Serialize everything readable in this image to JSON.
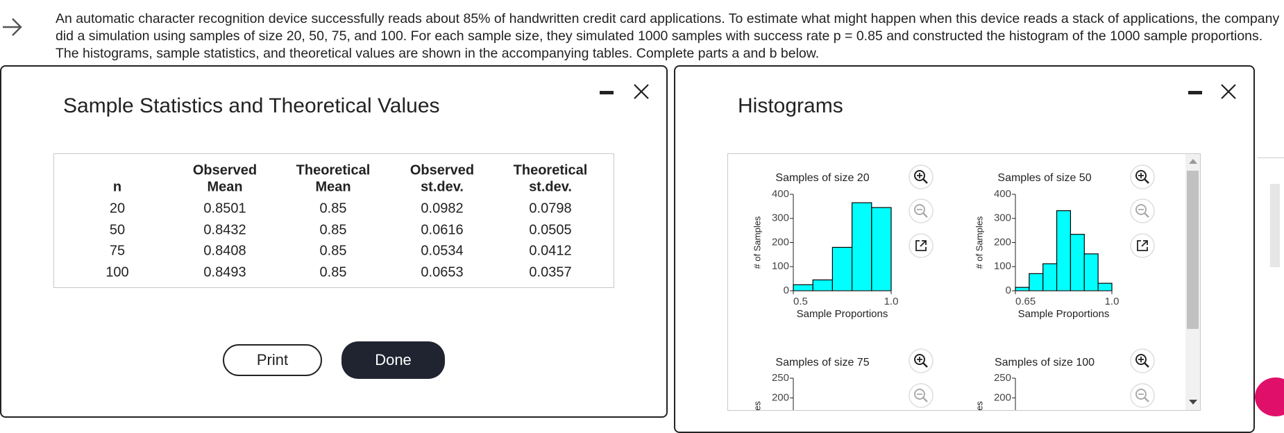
{
  "question": {
    "lines": [
      "An automatic character recognition device successfully reads about 85% of handwritten credit card applications. To estimate what might happen when this device reads a stack of applications, the company",
      "did a simulation using samples of size 20, 50, 75, and 100. For each sample size, they simulated 1000 samples with success rate p = 0.85 and constructed the histogram of the 1000 sample proportions.",
      "The histograms, sample statistics, and theoretical values are shown in the accompanying tables. Complete parts a and b below."
    ]
  },
  "stats_dialog": {
    "title": "Sample Statistics and Theoretical Values",
    "table": {
      "header": [
        [
          "n"
        ],
        [
          "Observed",
          "Mean"
        ],
        [
          "Theoretical",
          "Mean"
        ],
        [
          "Observed",
          "st.dev."
        ],
        [
          "Theoretical",
          "st.dev."
        ]
      ],
      "rows": [
        [
          "20",
          "0.8501",
          "0.85",
          "0.0982",
          "0.0798"
        ],
        [
          "50",
          "0.8432",
          "0.85",
          "0.0616",
          "0.0505"
        ],
        [
          "75",
          "0.8408",
          "0.85",
          "0.0534",
          "0.0412"
        ],
        [
          "100",
          "0.8493",
          "0.85",
          "0.0653",
          "0.0357"
        ]
      ]
    },
    "buttons": {
      "print": "Print",
      "done": "Done"
    }
  },
  "histograms_dialog": {
    "title": "Histograms"
  },
  "chart_data": [
    {
      "type": "histogram",
      "title": "Samples of size 20",
      "xlabel": "Sample Proportions",
      "ylabel": "# of Samples",
      "bins": [
        0.5,
        0.6,
        0.7,
        0.8,
        0.9,
        1.0
      ],
      "values": [
        25,
        45,
        180,
        365,
        345
      ],
      "color": "#00ffff",
      "xlim": [
        0.5,
        1.0
      ],
      "xticks": [
        0.5,
        {
          "value": 1.0,
          "label": "1.0"
        }
      ],
      "ylim": [
        0,
        400
      ],
      "yticks": [
        0,
        100,
        200,
        300,
        400
      ]
    },
    {
      "type": "histogram",
      "title": "Samples of size 50",
      "xlabel": "Sample Proportions",
      "ylabel": "# of Samples",
      "bins": [
        0.65,
        0.7,
        0.75,
        0.8,
        0.85,
        0.9,
        0.95,
        1.0
      ],
      "values": [
        14,
        71,
        112,
        332,
        234,
        153,
        31
      ],
      "color": "#00ffff",
      "xlim": [
        0.65,
        1.0
      ],
      "xticks": [
        0.65,
        {
          "value": 1.0,
          "label": "1.0"
        }
      ],
      "ylim": [
        0,
        400
      ],
      "yticks": [
        0,
        100,
        200,
        300,
        400
      ]
    },
    {
      "type": "histogram",
      "title": "Samples of size 75",
      "ylabel": "# of Samples",
      "ylim": [
        0,
        250
      ],
      "yticks": [
        200,
        250
      ]
    },
    {
      "type": "histogram",
      "title": "Samples of size 100",
      "ylabel": "# of Samples",
      "ylim": [
        0,
        250
      ],
      "yticks": [
        200,
        250
      ]
    }
  ]
}
